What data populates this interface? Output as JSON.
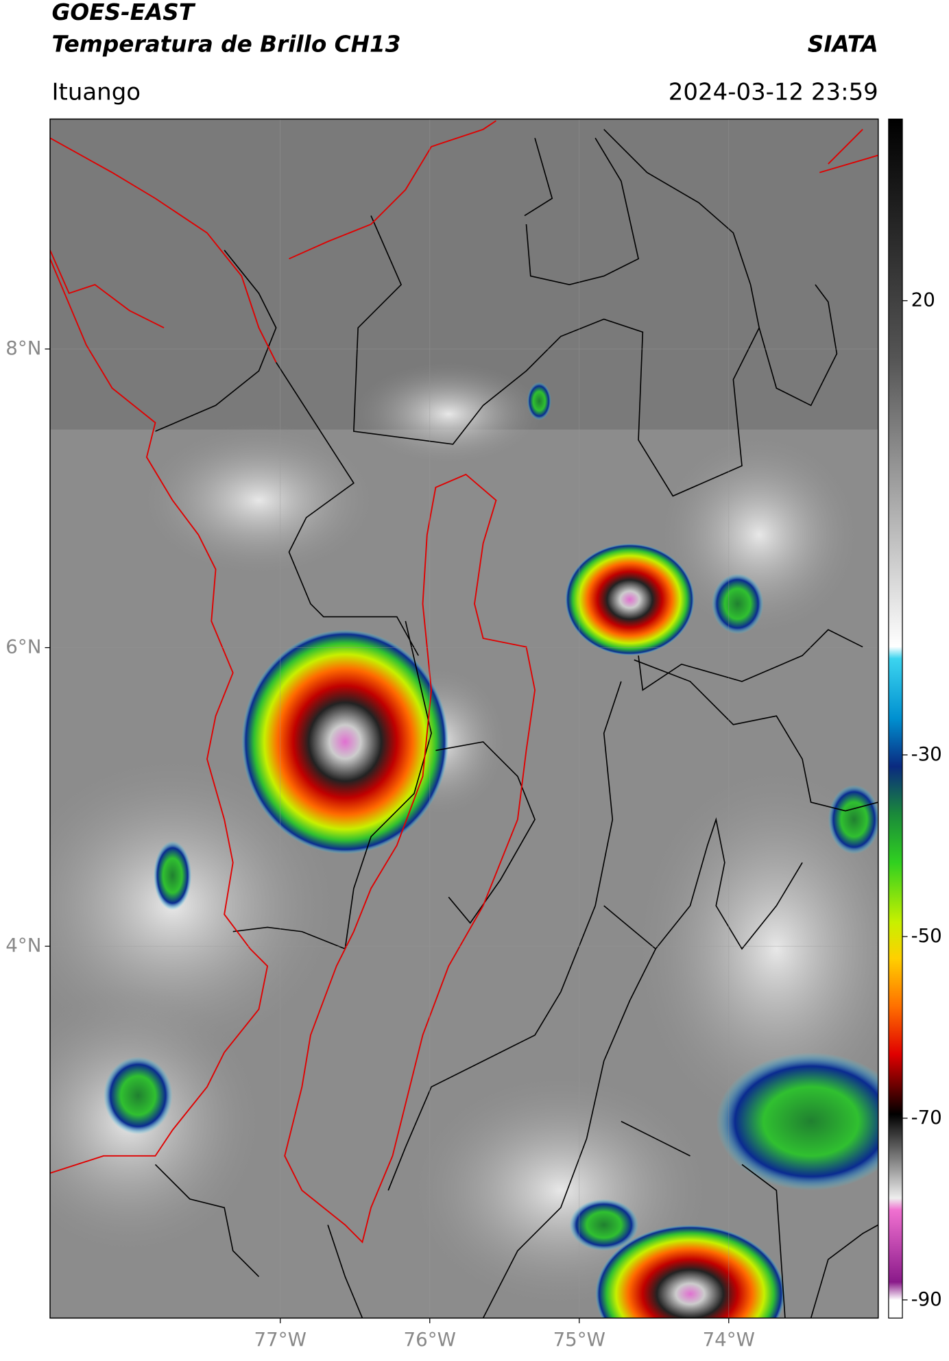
{
  "header": {
    "title": "GOES-EAST",
    "subtitle": "Temperatura de Brillo CH13",
    "agency": "SIATA",
    "location": "Ituango",
    "datetime": "2024-03-12 23:59"
  },
  "map": {
    "xlim": [
      -78.54,
      -73.0
    ],
    "ylim": [
      1.51,
      9.54
    ],
    "xticks": [
      {
        "value": -77,
        "label": "77°W"
      },
      {
        "value": -76,
        "label": "76°W"
      },
      {
        "value": -75,
        "label": "75°W"
      },
      {
        "value": -74,
        "label": "74°W"
      }
    ],
    "yticks": [
      {
        "value": 8,
        "label": "8°N"
      },
      {
        "value": 6,
        "label": "6°N"
      },
      {
        "value": 4,
        "label": "4°N"
      }
    ]
  },
  "colorbar": {
    "lim": [
      -92,
      40
    ],
    "ticks": [
      20,
      -30,
      -50,
      -70,
      -90
    ]
  }
}
